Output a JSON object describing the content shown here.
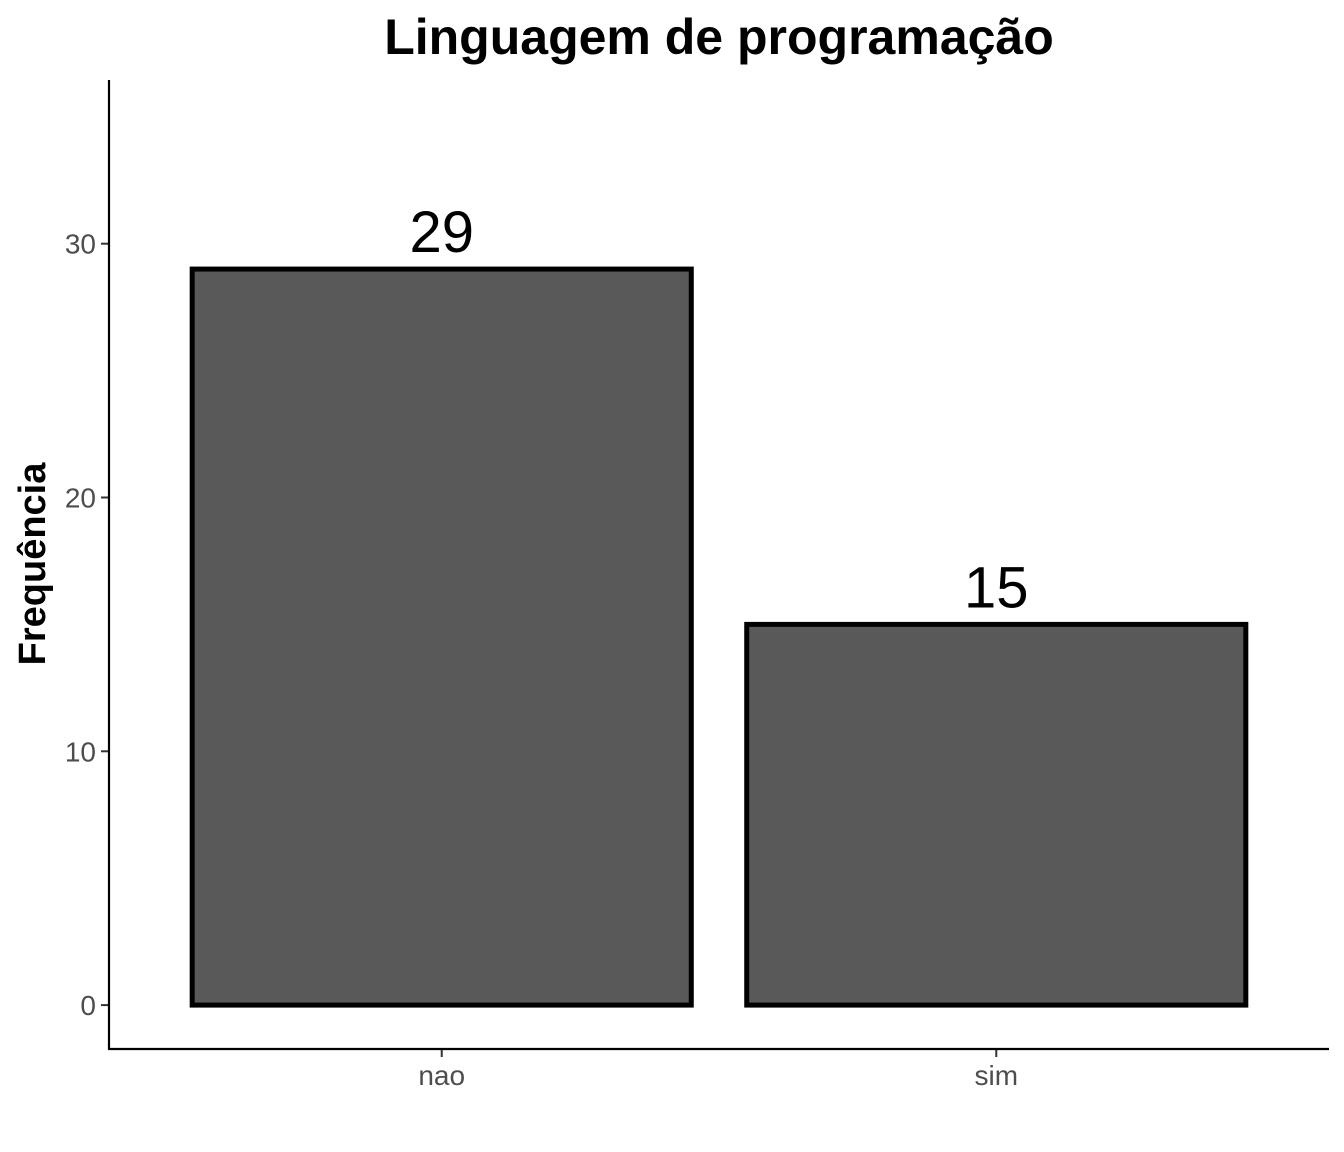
{
  "chart_data": {
    "type": "bar",
    "title": "Linguagem de programação",
    "xlabel": "",
    "ylabel": "Frequência",
    "categories": [
      "nao",
      "sim"
    ],
    "values": [
      29,
      15
    ],
    "data_labels": [
      "29",
      "15"
    ],
    "y_ticks": [
      0,
      10,
      20,
      30
    ],
    "ylim": [
      -1.73,
      36.45
    ],
    "grid": false,
    "legend": "none",
    "bar_fill": "#595959",
    "bar_stroke": "#000000"
  }
}
